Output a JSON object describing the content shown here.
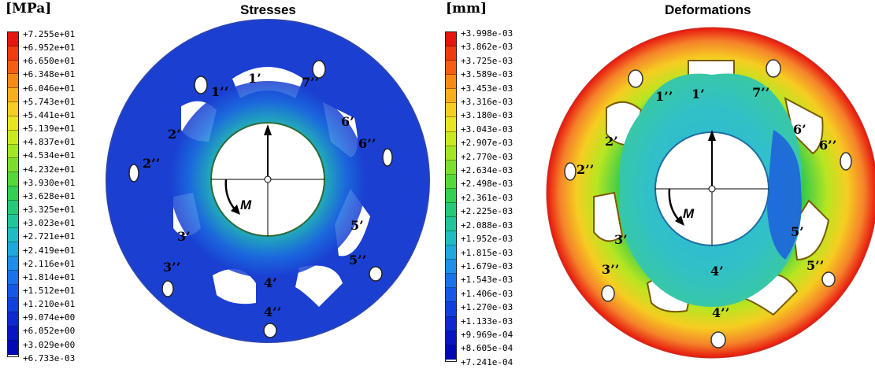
{
  "stresses": {
    "title": "Stresses",
    "unit": "[MPa]",
    "ticks": [
      "+7.255e+01",
      "+6.952e+01",
      "+6.650e+01",
      "+6.348e+01",
      "+6.046e+01",
      "+5.743e+01",
      "+5.441e+01",
      "+5.139e+01",
      "+4.837e+01",
      "+4.534e+01",
      "+4.232e+01",
      "+3.930e+01",
      "+3.628e+01",
      "+3.325e+01",
      "+3.023e+01",
      "+2.721e+01",
      "+2.419e+01",
      "+2.116e+01",
      "+1.814e+01",
      "+1.512e+01",
      "+1.210e+01",
      "+9.074e+00",
      "+6.052e+00",
      "+3.029e+00",
      "+6.733e-03"
    ],
    "moment_label": "M",
    "slot_labels": {
      "l1p": "1’",
      "l1pp": "1’’",
      "l2p": "2’",
      "l2pp": "2’’",
      "l3p": "3’",
      "l3pp": "3’’",
      "l4p": "4’",
      "l4pp": "4’’",
      "l5p": "5’",
      "l5pp": "5’’",
      "l6p": "6’",
      "l6pp": "6’’",
      "l7pp": "7’’"
    }
  },
  "deformations": {
    "title": "Deformations",
    "unit": "[mm]",
    "ticks": [
      "+3.998e-03",
      "+3.862e-03",
      "+3.725e-03",
      "+3.589e-03",
      "+3.453e-03",
      "+3.316e-03",
      "+3.180e-03",
      "+3.043e-03",
      "+2.907e-03",
      "+2.770e-03",
      "+2.634e-03",
      "+2.498e-03",
      "+2.361e-03",
      "+2.225e-03",
      "+2.088e-03",
      "+1.952e-03",
      "+1.815e-03",
      "+1.679e-03",
      "+1.543e-03",
      "+1.406e-03",
      "+1.270e-03",
      "+1.133e-03",
      "+9.969e-04",
      "+8.605e-04",
      "+7.241e-04"
    ],
    "moment_label": "M",
    "slot_labels": {
      "l1p": "1’",
      "l1pp": "1’’",
      "l2p": "2’",
      "l2pp": "2’’",
      "l3p": "3’",
      "l4p": "4’",
      "l4pp": "4’’",
      "l5p": "5’",
      "l5pp": "5’’",
      "l3pp": "3’’",
      "l6p": "6’",
      "l6pp": "6’’",
      "l7pp": "7’’"
    }
  },
  "colormap": [
    "#e6150e",
    "#f03a10",
    "#f55e12",
    "#f78a17",
    "#f9ae1d",
    "#f6cd21",
    "#e8e420",
    "#c8ea1f",
    "#a2e624",
    "#7ddf2d",
    "#55d83a",
    "#33d054",
    "#26c977",
    "#22c49b",
    "#21bcc1",
    "#20a8dc",
    "#1d8fe8",
    "#1a72ea",
    "#1757e6",
    "#1240dc",
    "#0c2ad0",
    "#0716c2",
    "#0208b4"
  ],
  "colors": {
    "mesh_blue": "#1a3fd1",
    "mesh_blue_dark": "#1230c4",
    "ring_green": "#36c94c",
    "hub_cyan": "#32c0c8"
  }
}
